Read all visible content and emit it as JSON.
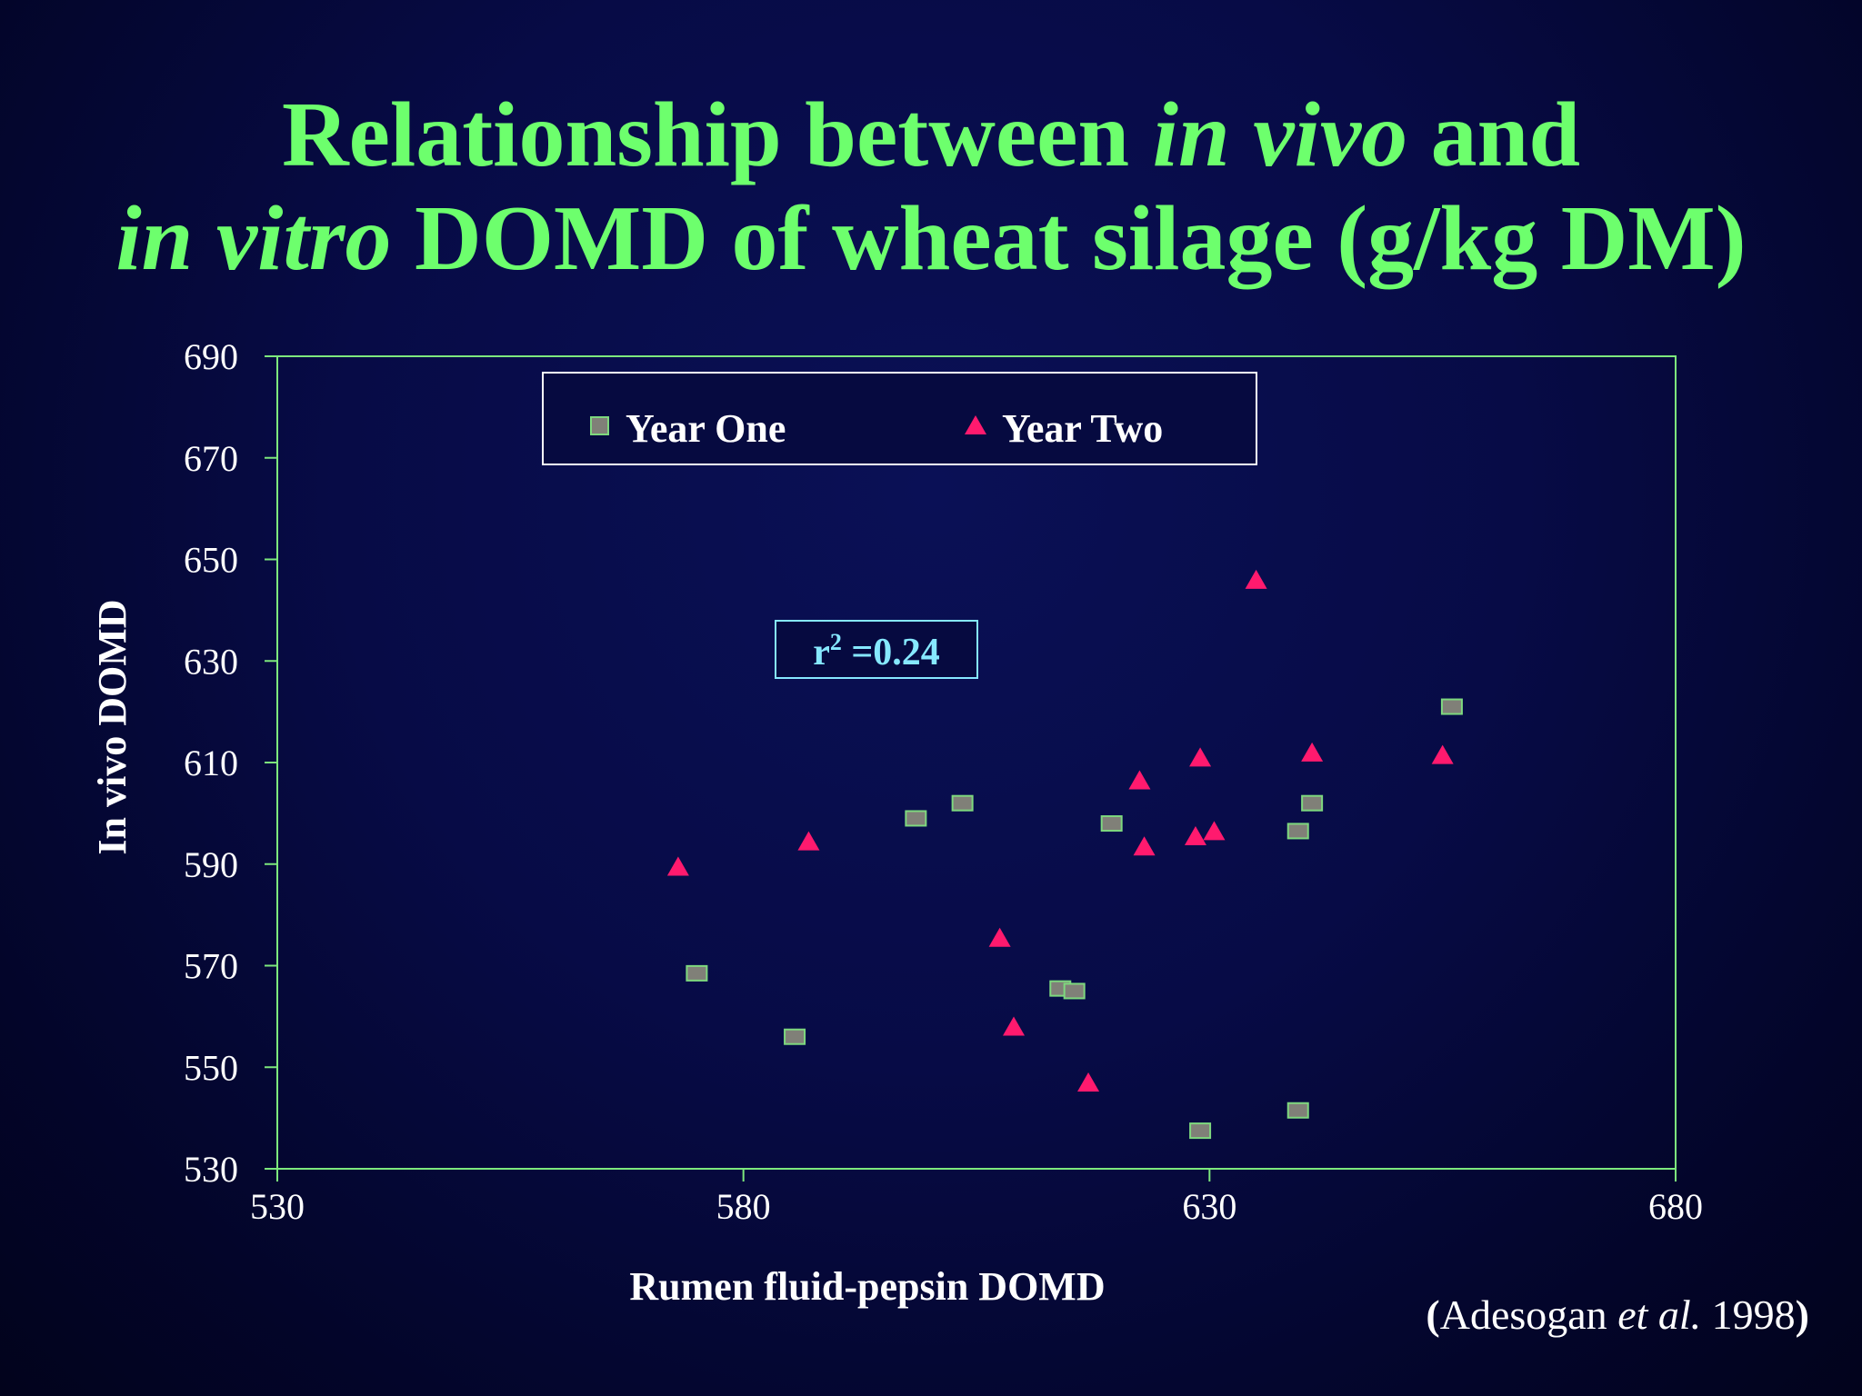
{
  "title": {
    "line1_a": "Relationship between ",
    "line1_b": "in vivo",
    "line1_c": " and",
    "line2_a": "in vitro",
    "line2_b": " DOMD of wheat silage (g/kg DM)"
  },
  "citation": {
    "open": "(",
    "author": "Adesogan ",
    "etal": "et al.",
    "year": " 1998",
    "close": ")"
  },
  "annotation": {
    "r_label": "r",
    "r_sup": "2",
    "r_value": " =0.24"
  },
  "colors": {
    "title": "#6dff6d",
    "plot_border": "#7de87d",
    "square_fill": "#808078",
    "square_stroke": "#7ed87e",
    "triangle": "#ff1a6e",
    "annotation": "#86e8ff"
  },
  "chart_data": {
    "type": "scatter",
    "title": "Relationship between in vivo and in vitro DOMD of wheat silage (g/kg DM)",
    "xlabel": "Rumen fluid-pepsin DOMD",
    "ylabel": "In vivo DOMD",
    "xlim": [
      530,
      680
    ],
    "ylim": [
      530,
      690
    ],
    "xticks": [
      530,
      580,
      630,
      680
    ],
    "yticks": [
      530,
      550,
      570,
      590,
      610,
      630,
      650,
      670,
      690
    ],
    "grid": false,
    "legend_position": "top-center",
    "series": [
      {
        "name": "Year One",
        "marker": "square",
        "points": [
          [
            575.0,
            568.5
          ],
          [
            585.5,
            556.0
          ],
          [
            598.5,
            599.0
          ],
          [
            603.5,
            602.0
          ],
          [
            614.0,
            565.5
          ],
          [
            615.5,
            565.0
          ],
          [
            619.5,
            598.0
          ],
          [
            629.0,
            537.5
          ],
          [
            639.5,
            541.5
          ],
          [
            639.5,
            596.5
          ],
          [
            641.0,
            602.0
          ],
          [
            656.0,
            621.0
          ]
        ]
      },
      {
        "name": "Year Two",
        "marker": "triangle",
        "points": [
          [
            573.0,
            589.5
          ],
          [
            587.0,
            594.5
          ],
          [
            607.5,
            575.5
          ],
          [
            609.0,
            558.0
          ],
          [
            617.0,
            547.0
          ],
          [
            622.5,
            606.5
          ],
          [
            623.0,
            593.5
          ],
          [
            628.5,
            595.5
          ],
          [
            629.0,
            611.0
          ],
          [
            630.5,
            596.5
          ],
          [
            635.0,
            646.0
          ],
          [
            641.0,
            612.0
          ],
          [
            655.0,
            611.5
          ]
        ]
      }
    ]
  }
}
